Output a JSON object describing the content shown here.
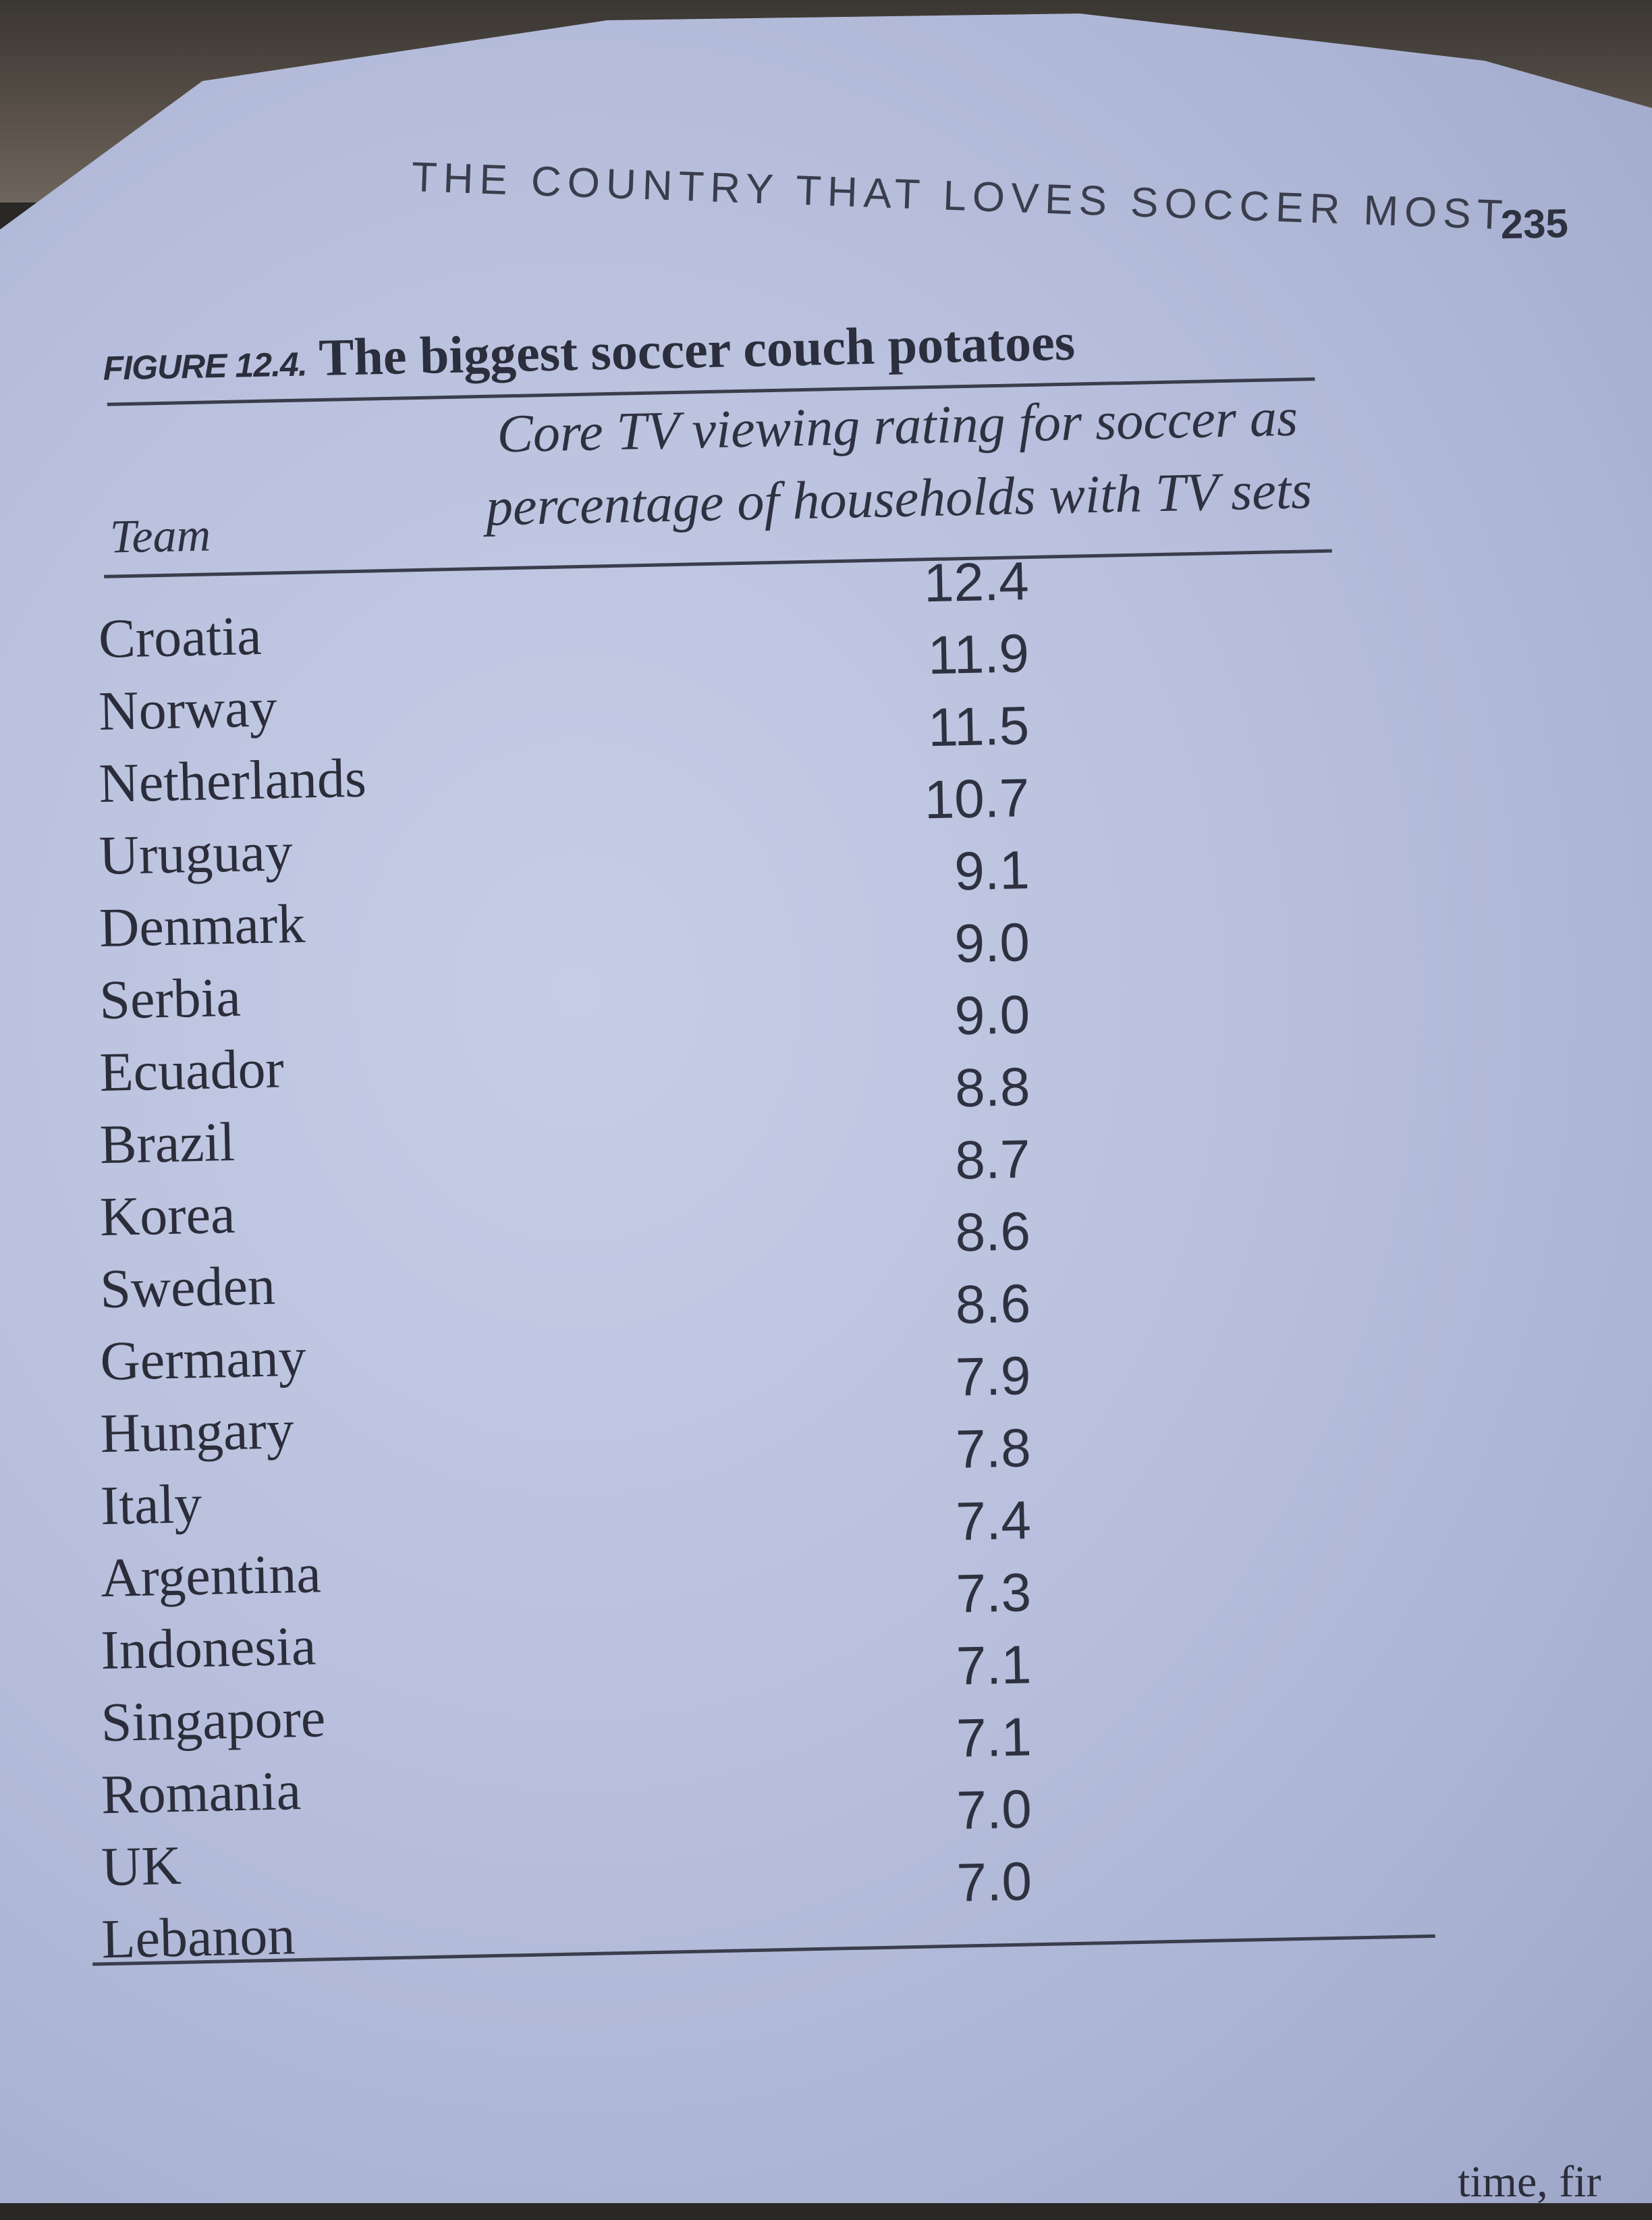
{
  "running_head": {
    "title": "THE COUNTRY THAT LOVES SOCCER MOST",
    "page_number": "235"
  },
  "figure": {
    "label": "FIGURE 12.4.",
    "title": "The biggest soccer couch potatoes"
  },
  "table": {
    "headers": {
      "team": "Team",
      "rating_line1": "Core TV viewing rating for soccer as",
      "rating_line2": "percentage of households with TV sets"
    },
    "rows": [
      {
        "team": "Croatia",
        "rating": "12.4"
      },
      {
        "team": "Norway",
        "rating": "11.9"
      },
      {
        "team": "Netherlands",
        "rating": "11.5"
      },
      {
        "team": "Uruguay",
        "rating": "10.7"
      },
      {
        "team": "Denmark",
        "rating": "9.1"
      },
      {
        "team": "Serbia",
        "rating": "9.0"
      },
      {
        "team": "Ecuador",
        "rating": "9.0"
      },
      {
        "team": "Brazil",
        "rating": "8.8"
      },
      {
        "team": "Korea",
        "rating": "8.7"
      },
      {
        "team": "Sweden",
        "rating": "8.6"
      },
      {
        "team": "Germany",
        "rating": "8.6"
      },
      {
        "team": "Hungary",
        "rating": "7.9"
      },
      {
        "team": "Italy",
        "rating": "7.8"
      },
      {
        "team": "Argentina",
        "rating": "7.4"
      },
      {
        "team": "Indonesia",
        "rating": "7.3"
      },
      {
        "team": "Singapore",
        "rating": "7.1"
      },
      {
        "team": "Romania",
        "rating": "7.1"
      },
      {
        "team": "UK",
        "rating": "7.0"
      },
      {
        "team": "Lebanon",
        "rating": "7.0"
      }
    ]
  },
  "footer_fragment": "time, fir"
}
